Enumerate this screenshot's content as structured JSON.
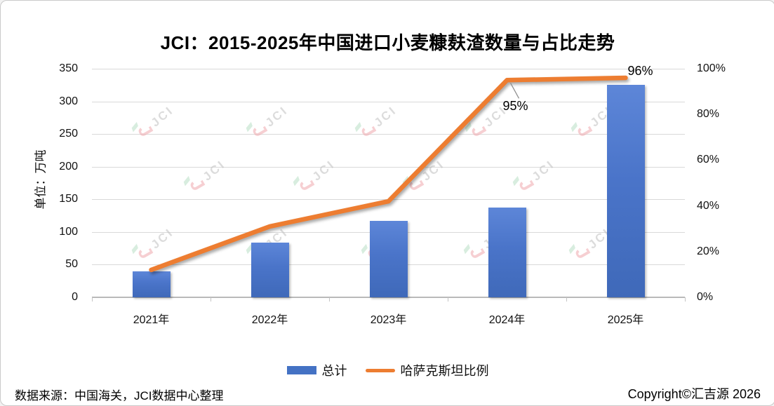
{
  "chart_data": {
    "type": "combo",
    "title": "JCI：2015-2025年中国进口小麦糠麸渣数量与占比走势",
    "categories": [
      "2021年",
      "2022年",
      "2023年",
      "2024年",
      "2025年"
    ],
    "series": [
      {
        "name": "总计",
        "type": "bar",
        "axis": "left",
        "unit": "万吨",
        "color": "#4472C4",
        "values": [
          40,
          84,
          117,
          137,
          325
        ]
      },
      {
        "name": "哈萨克斯坦比例",
        "type": "line",
        "axis": "right",
        "unit": "%",
        "color": "#ED7D31",
        "values": [
          12,
          31,
          42,
          95,
          96
        ]
      }
    ],
    "annotations": [
      {
        "series": "哈萨克斯坦比例",
        "category_index": 3,
        "text": "95%",
        "placement": "below-with-leader"
      },
      {
        "series": "哈萨克斯坦比例",
        "category_index": 4,
        "text": "96%",
        "placement": "above-right"
      }
    ],
    "left_axis": {
      "label": "单位：万吨",
      "min": 0,
      "max": 350,
      "tick_values": [
        0,
        50,
        100,
        150,
        200,
        250,
        300,
        350
      ]
    },
    "right_axis": {
      "min": 0,
      "max": 100,
      "tick_values": [
        0,
        20,
        40,
        60,
        80,
        100
      ],
      "tick_suffix": "%"
    },
    "grid": "horizontal",
    "legend_position": "bottom"
  },
  "watermark": {
    "text": "JCI"
  },
  "footer": {
    "source": "数据来源：中国海关，JCI数据中心整理",
    "copyright": "Copyright©汇吉源 2026"
  }
}
